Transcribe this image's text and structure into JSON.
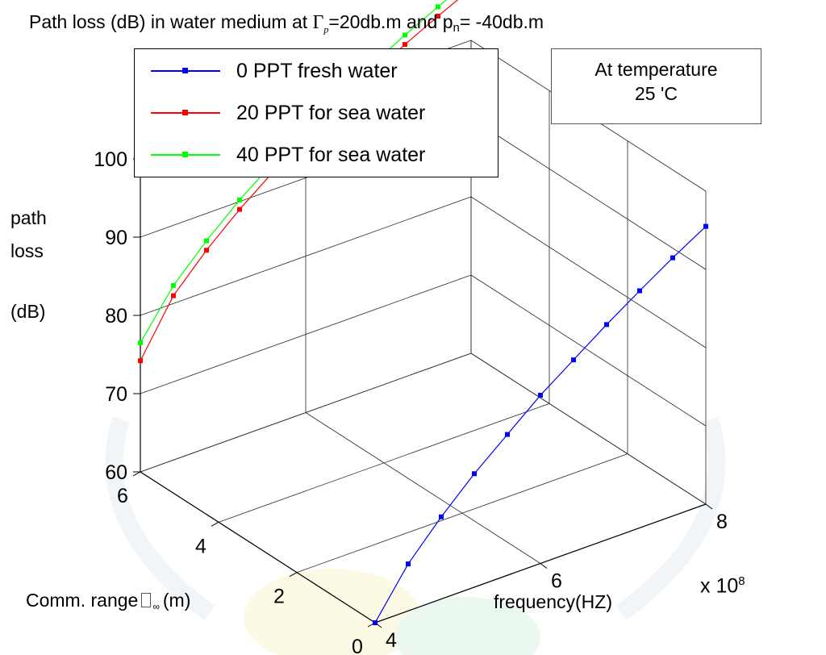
{
  "title": {
    "prefix": "Path loss (dB) in water medium at ",
    "symbol": "Γ",
    "symbol_sub": "p",
    "middle": "=20db.m and p",
    "pn_sub": "n",
    "suffix": "= -40db.m"
  },
  "annotation": {
    "line1": "At temperature",
    "line2": "25 'C"
  },
  "zlabel": {
    "line1": "path",
    "line2": "loss",
    "line3": "(dB)"
  },
  "xlabel": "frequency(HZ)",
  "x_exponent": {
    "base": "x 10",
    "power": "8"
  },
  "ylabel": {
    "text": "Comm. range",
    "unit": "(m)",
    "sub": "∞"
  },
  "chart_data": {
    "type": "line",
    "projection": "3d",
    "title": "Path loss (dB) in water medium at Γp =20db.m and pn= -40db.m",
    "xlabel": "frequency(HZ)",
    "x_scale_label": "x 10^8",
    "ylabel": "Comm. range (m)",
    "zlabel": "path loss (dB)",
    "xlim": [
      4,
      8
    ],
    "ylim": [
      0,
      6
    ],
    "zlim": [
      60,
      100
    ],
    "x_ticks": [
      4,
      6,
      8
    ],
    "y_ticks": [
      0,
      2,
      4,
      6
    ],
    "z_ticks": [
      60,
      70,
      80,
      90,
      100
    ],
    "grid": true,
    "legend_position": "top-left",
    "series": [
      {
        "name": "0 PPT fresh water",
        "color": "#0000ff",
        "x": [
          4.0,
          4.4,
          4.8,
          5.2,
          5.6,
          6.0,
          6.4,
          6.8,
          7.2,
          7.6,
          8.0
        ],
        "y": [
          0,
          0,
          0,
          0,
          0,
          0,
          0,
          0,
          0,
          0,
          0
        ],
        "z": [
          60,
          66,
          70.5,
          74.5,
          78,
          81.5,
          84.5,
          87.5,
          90.3,
          93,
          95.5
        ]
      },
      {
        "name": "20 PPT for sea water",
        "color": "#ff0000",
        "x": [
          4.0,
          4.4,
          4.8,
          5.2,
          5.6,
          6.0,
          6.4,
          6.8,
          7.2,
          7.6,
          8.0
        ],
        "y": [
          6,
          6,
          6,
          6,
          6,
          6,
          6,
          6,
          6,
          6,
          6
        ],
        "z": [
          74.2,
          81,
          85.3,
          89,
          92.2,
          95.1,
          97.7,
          100.2,
          102.5,
          104.6,
          106.6
        ]
      },
      {
        "name": "40 PPT for sea water",
        "color": "#00ff00",
        "x": [
          4.0,
          4.4,
          4.8,
          5.2,
          5.6,
          6.0,
          6.4,
          6.8,
          7.2,
          7.6,
          8.0
        ],
        "y": [
          6,
          6,
          6,
          6,
          6,
          6,
          6,
          6,
          6,
          6,
          6
        ],
        "z": [
          76.5,
          82.3,
          86.5,
          90.2,
          93.4,
          96.3,
          98.9,
          101.4,
          103.7,
          105.8,
          107.8
        ]
      }
    ]
  }
}
